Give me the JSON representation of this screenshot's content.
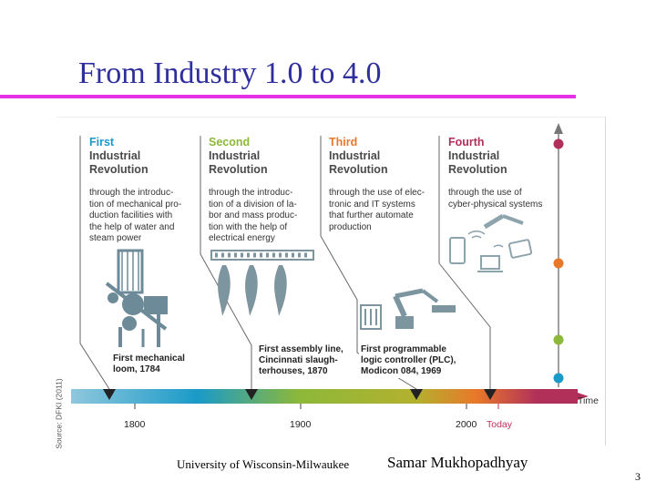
{
  "slide": {
    "title": "From Industry 1.0 to 4.0",
    "footer_left": "University of Wisconsin-Milwaukee",
    "footer_right": "Samar Mukhopadhyay",
    "page_number": "3",
    "accent_color": "#e632e6",
    "title_color": "#2e2e9e"
  },
  "figure": {
    "source": "Source: DFKI (2011)",
    "time_label": "Time",
    "revolutions": [
      {
        "word": "First",
        "rest": "Industrial\nRevolution",
        "color": "#1a9ac8",
        "desc": "through the introduc-\ntion of mechanical pro-\nduction facilities with\nthe help of water and\nsteam power"
      },
      {
        "word": "Second",
        "rest": "Industrial\nRevolution",
        "color": "#8db83a",
        "desc": "through the introduc-\ntion of a division of la-\nbor and mass produc-\ntion with the help of\nelectrical energy"
      },
      {
        "word": "Third",
        "rest": "Industrial\nRevolution",
        "color": "#e8782a",
        "desc": "through the use of elec-\ntronic and IT systems\nthat further automate\nproduction"
      },
      {
        "word": "Fourth",
        "rest": "Industrial\nRevolution",
        "color": "#b0305a",
        "desc": "through the use of\ncyber-physical systems"
      }
    ],
    "milestones": [
      {
        "text": "First mechanical\nloom, 1784"
      },
      {
        "text": "First assembly line,\nCincinnati slaugh-\nterhouses, 1870"
      },
      {
        "text": "First programmable\nlogic controller (PLC),\nModicon 084, 1969"
      }
    ],
    "years": [
      "1800",
      "1900",
      "2000",
      "Today"
    ],
    "today_color": "#c0305a",
    "axis_dot_colors": [
      "#b0305a",
      "#e8782a",
      "#8db83a",
      "#1a9ac8"
    ]
  }
}
